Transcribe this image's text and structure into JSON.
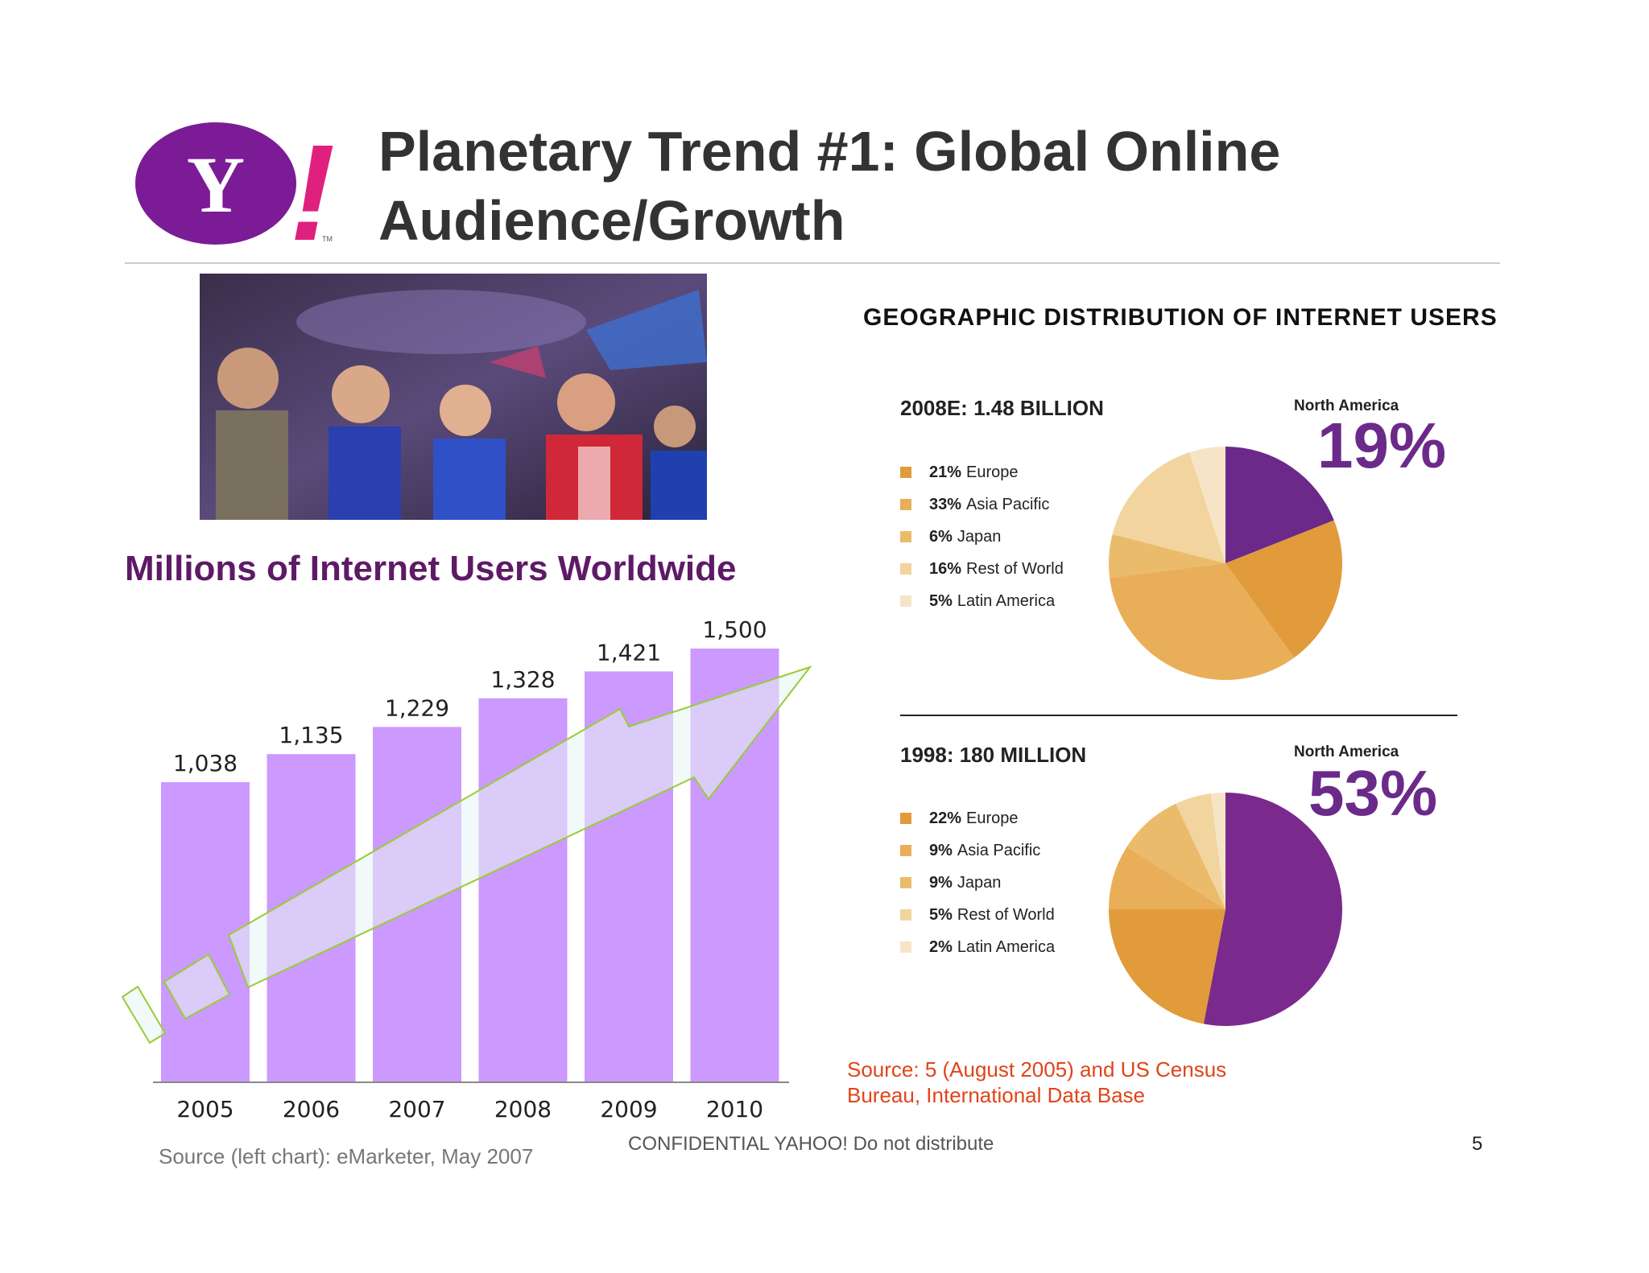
{
  "slide": {
    "title_line1": "Planetary Trend #1: Global Online",
    "title_line2": "Audience/Growth",
    "logo": {
      "letter": "Y",
      "bang": "!",
      "tm": "TM",
      "color": "#7b1c96"
    },
    "bar_chart_title": "Millions of Internet Users Worldwide",
    "geo_title": "GEOGRAPHIC DISTRIBUTION OF INTERNET USERS",
    "source_left": "Source (left chart): eMarketer, May 2007",
    "source_right_line1": "Source: 5 (August 2005) and US Census",
    "source_right_line2": "Bureau, International Data Base",
    "confidential": "CONFIDENTIAL YAHOO! Do not distribute",
    "page_number": "5",
    "photo_alt": "crowd-photo"
  },
  "chart_data": [
    {
      "type": "bar",
      "title": "Millions of Internet Users Worldwide",
      "categories": [
        "2005",
        "2006",
        "2007",
        "2008",
        "2009",
        "2010"
      ],
      "values": [
        1038,
        1135,
        1229,
        1328,
        1421,
        1500
      ],
      "value_labels": [
        "1,038",
        "1,135",
        "1,229",
        "1,328",
        "1,421",
        "1,500"
      ],
      "ylim": [
        0,
        1500
      ],
      "bar_color": "#cc99ff",
      "grid": false
    },
    {
      "type": "pie",
      "heading": "2008E: 1.48 BILLION",
      "highlight_label": "North America",
      "highlight_value": "19%",
      "slices": [
        {
          "name": "North America",
          "value": 19,
          "color": "#6b2a8a"
        },
        {
          "name": "Europe",
          "value": 21,
          "color": "#e19b3b"
        },
        {
          "name": "Asia Pacific",
          "value": 33,
          "color": "#e9ae58"
        },
        {
          "name": "Japan",
          "value": 6,
          "color": "#ebbb6c"
        },
        {
          "name": "Rest of World",
          "value": 16,
          "color": "#f2d49e"
        },
        {
          "name": "Latin America",
          "value": 5,
          "color": "#f6e4c6"
        }
      ],
      "legend": [
        {
          "pct": "21%",
          "name": "Europe",
          "color": "#e19b3b"
        },
        {
          "pct": "33%",
          "name": "Asia Pacific",
          "color": "#e9ae58"
        },
        {
          "pct": "6%",
          "name": "Japan",
          "color": "#ebbb6c"
        },
        {
          "pct": "16%",
          "name": "Rest of World",
          "color": "#f2d49e"
        },
        {
          "pct": "5%",
          "name": "Latin America",
          "color": "#f6e4c6"
        }
      ]
    },
    {
      "type": "pie",
      "heading": "1998: 180 MILLION",
      "highlight_label": "North America",
      "highlight_value": "53%",
      "slices": [
        {
          "name": "North America",
          "value": 53,
          "color": "#7a2a8c"
        },
        {
          "name": "Europe",
          "value": 22,
          "color": "#e19b3b"
        },
        {
          "name": "Asia Pacific",
          "value": 9,
          "color": "#e9ae58"
        },
        {
          "name": "Japan",
          "value": 9,
          "color": "#ebbb6c"
        },
        {
          "name": "Rest of World",
          "value": 5,
          "color": "#f2d49e"
        },
        {
          "name": "Latin America",
          "value": 2,
          "color": "#f6e4c6"
        }
      ],
      "legend": [
        {
          "pct": "22%",
          "name": "Europe",
          "color": "#e19b3b"
        },
        {
          "pct": "9%",
          "name": "Asia Pacific",
          "color": "#e9ae58"
        },
        {
          "pct": "9%",
          "name": "Japan",
          "color": "#ebbb6c"
        },
        {
          "pct": "5%",
          "name": "Rest of World",
          "color": "#f2d49e"
        },
        {
          "pct": "2%",
          "name": "Latin America",
          "color": "#f6e4c6"
        }
      ]
    }
  ]
}
